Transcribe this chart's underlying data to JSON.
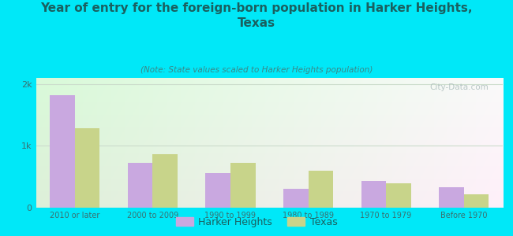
{
  "title": "Year of entry for the foreign-born population in Harker Heights,\nTexas",
  "subtitle": "(Note: State values scaled to Harker Heights population)",
  "categories": [
    "2010 or later",
    "2000 to 2009",
    "1990 to 1999",
    "1980 to 1989",
    "1970 to 1979",
    "Before 1970"
  ],
  "harker_heights": [
    1820,
    720,
    560,
    310,
    430,
    330
  ],
  "texas": [
    1280,
    860,
    730,
    600,
    400,
    220
  ],
  "bar_color_hh": "#c9a8e0",
  "bar_color_tx": "#c8d48a",
  "background_outer": "#00e8f8",
  "yticks": [
    0,
    1000,
    2000
  ],
  "ytick_labels": [
    "0",
    "1k",
    "2k"
  ],
  "ylim": [
    0,
    2100
  ],
  "legend_hh": "Harker Heights",
  "legend_tx": "Texas",
  "watermark": "City-Data.com",
  "title_color": "#1a6060",
  "subtitle_color": "#3a8888",
  "tick_color": "#3a7070",
  "grid_color": "#ccddcc"
}
